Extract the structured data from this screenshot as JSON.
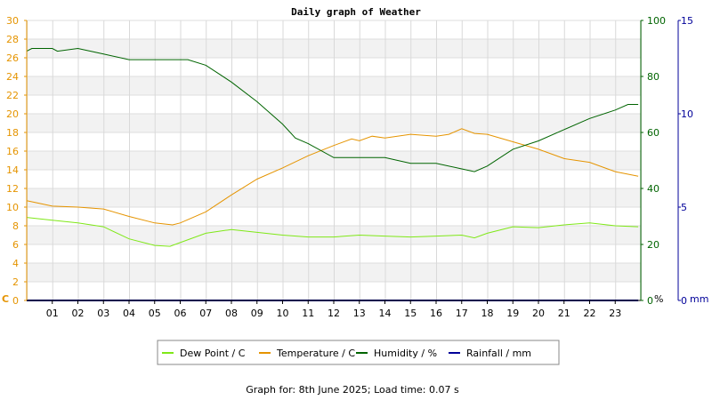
{
  "chart_data": {
    "type": "line",
    "title": "Daily graph of Weather",
    "footer": "Graph for: 8th June 2025; Load time: 0.07 s",
    "x_ticks": [
      "01",
      "02",
      "03",
      "04",
      "05",
      "06",
      "07",
      "08",
      "09",
      "10",
      "11",
      "12",
      "13",
      "14",
      "15",
      "16",
      "17",
      "18",
      "19",
      "20",
      "21",
      "22",
      "23"
    ],
    "xlim": [
      0,
      24
    ],
    "axes": {
      "temp": {
        "label": "C",
        "ylim": [
          0,
          30
        ],
        "ticks": [
          0,
          2,
          4,
          6,
          8,
          10,
          12,
          14,
          16,
          18,
          20,
          22,
          24,
          26,
          28,
          30
        ],
        "color": "#e59400"
      },
      "humidity": {
        "label": "%",
        "ylim": [
          0,
          100
        ],
        "ticks": [
          0,
          20,
          40,
          60,
          80,
          100
        ],
        "color": "#006400"
      },
      "rain": {
        "label": "mm",
        "ylim": [
          0,
          15
        ],
        "ticks": [
          0,
          5,
          10,
          15
        ],
        "color": "#000099"
      }
    },
    "grid": true,
    "legend_position": "bottom",
    "series": [
      {
        "name": "Dew Point / C",
        "axis": "temp",
        "color": "#7fe817",
        "points": [
          [
            0,
            8.9
          ],
          [
            1,
            8.6
          ],
          [
            2,
            8.3
          ],
          [
            3,
            7.9
          ],
          [
            4,
            6.6
          ],
          [
            5,
            5.9
          ],
          [
            5.6,
            5.8
          ],
          [
            6,
            6.2
          ],
          [
            7,
            7.2
          ],
          [
            8,
            7.6
          ],
          [
            9,
            7.3
          ],
          [
            10,
            7.0
          ],
          [
            11,
            6.8
          ],
          [
            12,
            6.8
          ],
          [
            13,
            7.0
          ],
          [
            14,
            6.9
          ],
          [
            15,
            6.8
          ],
          [
            16,
            6.9
          ],
          [
            17,
            7.0
          ],
          [
            17.5,
            6.7
          ],
          [
            18,
            7.2
          ],
          [
            19,
            7.9
          ],
          [
            20,
            7.8
          ],
          [
            21,
            8.1
          ],
          [
            22,
            8.3
          ],
          [
            23,
            8.0
          ],
          [
            23.9,
            7.9
          ]
        ]
      },
      {
        "name": "Temperature / C",
        "axis": "temp",
        "color": "#e59400",
        "points": [
          [
            0,
            10.7
          ],
          [
            1,
            10.1
          ],
          [
            2,
            10.0
          ],
          [
            3,
            9.8
          ],
          [
            4,
            9.0
          ],
          [
            5,
            8.3
          ],
          [
            5.7,
            8.1
          ],
          [
            6,
            8.3
          ],
          [
            7,
            9.5
          ],
          [
            8,
            11.3
          ],
          [
            9,
            13.0
          ],
          [
            10,
            14.2
          ],
          [
            11,
            15.5
          ],
          [
            12,
            16.6
          ],
          [
            12.7,
            17.3
          ],
          [
            13,
            17.1
          ],
          [
            13.5,
            17.6
          ],
          [
            14,
            17.4
          ],
          [
            15,
            17.8
          ],
          [
            16,
            17.6
          ],
          [
            16.5,
            17.8
          ],
          [
            17,
            18.4
          ],
          [
            17.5,
            17.9
          ],
          [
            18,
            17.8
          ],
          [
            19,
            17.0
          ],
          [
            20,
            16.2
          ],
          [
            21,
            15.2
          ],
          [
            22,
            14.8
          ],
          [
            23,
            13.8
          ],
          [
            23.9,
            13.3
          ]
        ]
      },
      {
        "name": "Humidity / %",
        "axis": "humidity",
        "color": "#006400",
        "points": [
          [
            0,
            89
          ],
          [
            0.2,
            90
          ],
          [
            1,
            90
          ],
          [
            1.2,
            89
          ],
          [
            2,
            90
          ],
          [
            3,
            88
          ],
          [
            4,
            86
          ],
          [
            5,
            86
          ],
          [
            6,
            86
          ],
          [
            6.3,
            86
          ],
          [
            7,
            84
          ],
          [
            7.5,
            81
          ],
          [
            8,
            78
          ],
          [
            9,
            71
          ],
          [
            10,
            63
          ],
          [
            10.5,
            58
          ],
          [
            11,
            56
          ],
          [
            12,
            51
          ],
          [
            13,
            51
          ],
          [
            14,
            51
          ],
          [
            15,
            49
          ],
          [
            16,
            49
          ],
          [
            17,
            47
          ],
          [
            17.5,
            46
          ],
          [
            18,
            48
          ],
          [
            19,
            54
          ],
          [
            20,
            57
          ],
          [
            21,
            61
          ],
          [
            22,
            65
          ],
          [
            23,
            68
          ],
          [
            23.5,
            70
          ],
          [
            23.9,
            70
          ]
        ]
      },
      {
        "name": "Rainfall / mm",
        "axis": "rain",
        "color": "#000099",
        "points": [
          [
            0,
            0
          ],
          [
            23.9,
            0
          ]
        ]
      }
    ]
  }
}
